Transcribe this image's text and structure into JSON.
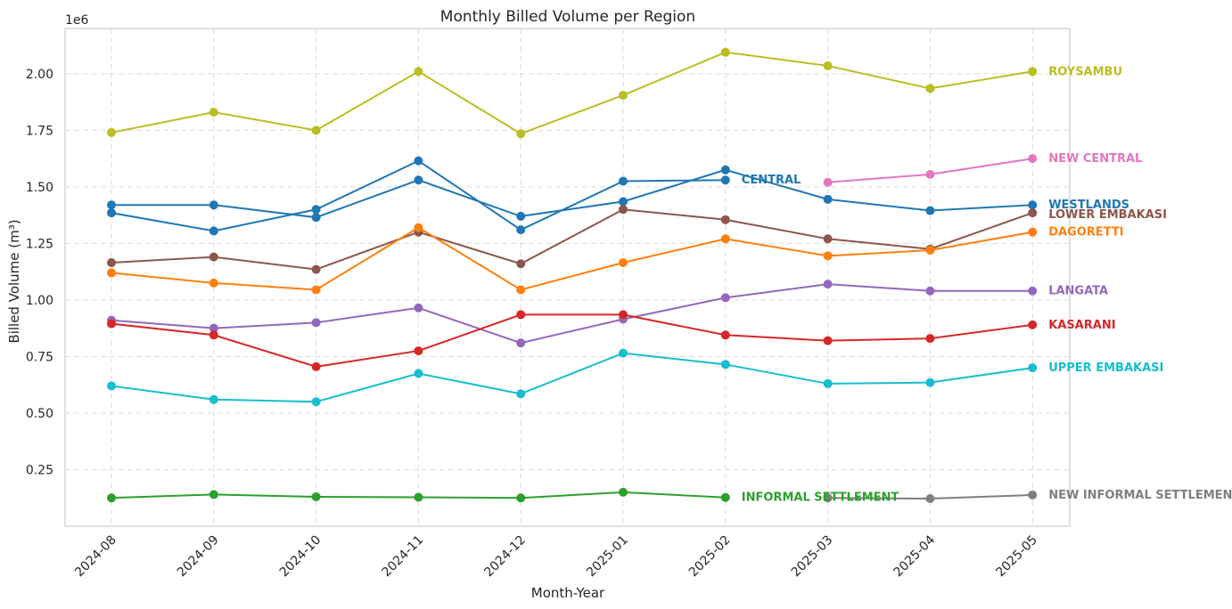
{
  "chart_data": {
    "type": "line",
    "title": "Monthly Billed Volume per Region",
    "xlabel": "Month-Year",
    "ylabel": "Billed Volume (m³)",
    "y_offset_label": "1e6",
    "ylim": [
      0,
      2200000
    ],
    "yticks": [
      250000,
      500000,
      750000,
      1000000,
      1250000,
      1500000,
      1750000,
      2000000
    ],
    "ytick_labels": [
      "0.25",
      "0.50",
      "0.75",
      "1.00",
      "1.25",
      "1.50",
      "1.75",
      "2.00"
    ],
    "grid": true,
    "categories": [
      "2024-08",
      "2024-09",
      "2024-10",
      "2024-11",
      "2024-12",
      "2025-01",
      "2025-02",
      "2025-03",
      "2025-04",
      "2025-05"
    ],
    "series": [
      {
        "name": "ROYSAMBU",
        "color": "#bcbd22",
        "values": [
          1740000,
          1830000,
          1750000,
          2010000,
          1735000,
          1905000,
          2095000,
          2035000,
          1935000,
          2010000
        ]
      },
      {
        "name": "NEW CENTRAL",
        "color": "#e377c2",
        "values": [
          null,
          null,
          null,
          null,
          null,
          null,
          null,
          1520000,
          1555000,
          1625000
        ]
      },
      {
        "name": "CENTRAL",
        "color": "#1f77b4",
        "values": [
          1385000,
          1305000,
          1400000,
          1615000,
          1310000,
          1525000,
          1530000,
          null,
          null,
          null
        ]
      },
      {
        "name": "WESTLANDS",
        "color": "#1f77b4",
        "values": [
          1420000,
          1420000,
          1365000,
          1530000,
          1370000,
          1435000,
          1575000,
          1445000,
          1395000,
          1420000
        ]
      },
      {
        "name": "LOWER EMBAKASI",
        "color": "#8c564b",
        "values": [
          1165000,
          1190000,
          1135000,
          1300000,
          1160000,
          1400000,
          1355000,
          1270000,
          1225000,
          1385000
        ]
      },
      {
        "name": "DAGORETTI",
        "color": "#ff7f0e",
        "values": [
          1120000,
          1075000,
          1045000,
          1320000,
          1045000,
          1165000,
          1270000,
          1195000,
          1220000,
          1300000
        ]
      },
      {
        "name": "LANGATA",
        "color": "#9467bd",
        "values": [
          910000,
          875000,
          900000,
          965000,
          810000,
          915000,
          1010000,
          1070000,
          1040000,
          1040000
        ]
      },
      {
        "name": "KASARANI",
        "color": "#d62728",
        "values": [
          895000,
          845000,
          705000,
          775000,
          935000,
          935000,
          845000,
          820000,
          830000,
          890000
        ]
      },
      {
        "name": "UPPER EMBAKASI",
        "color": "#17becf",
        "values": [
          620000,
          560000,
          550000,
          675000,
          585000,
          765000,
          715000,
          630000,
          635000,
          700000
        ]
      },
      {
        "name": "INFORMAL SETTLEMENT",
        "color": "#2ca02c",
        "values": [
          125000,
          140000,
          130000,
          128000,
          125000,
          150000,
          127000,
          null,
          null,
          null
        ]
      },
      {
        "name": "NEW INFORMAL SETTLEMENT",
        "color": "#7f7f7f",
        "values": [
          null,
          null,
          null,
          null,
          null,
          null,
          null,
          125000,
          122000,
          138000
        ]
      }
    ]
  }
}
